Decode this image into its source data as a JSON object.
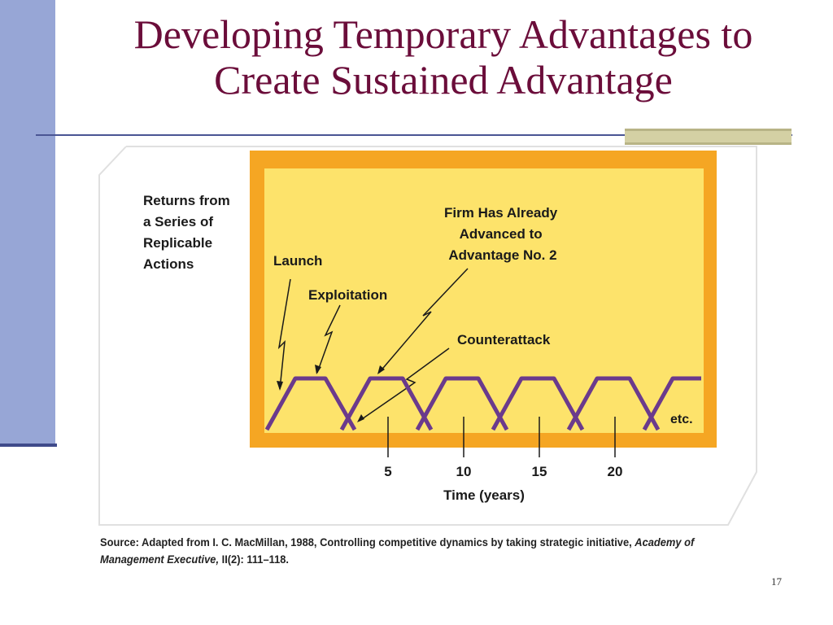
{
  "slide": {
    "title_line1": "Developing Temporary Advantages to",
    "title_line2": "Create Sustained Advantage",
    "page_number": "17",
    "accent_color": "#6b0d3a",
    "sidebar_color": "#97a6d6"
  },
  "figure": {
    "y_label_lines": [
      "Returns from",
      "a Series of",
      "Replicable",
      "Actions"
    ],
    "annotations": {
      "launch": "Launch",
      "exploitation": "Exploitation",
      "firm_advanced_lines": [
        "Firm Has Already",
        "Advanced to",
        "Advantage No. 2"
      ],
      "counterattack": "Counterattack",
      "etc": "etc."
    },
    "x_ticks": [
      "5",
      "10",
      "15",
      "20"
    ],
    "x_label": "Time (years)",
    "colors": {
      "panel_border": "#f5a623",
      "panel_fill": "#fde36b",
      "curve": "#6b3a8c"
    }
  },
  "source": {
    "prefix": "Source: Adapted from I. C. MacMillan, 1988, Controlling competitive dynamics by taking strategic initiative, ",
    "journal": "Academy of Management Executive,",
    "suffix": " II(2): 111–118."
  }
}
